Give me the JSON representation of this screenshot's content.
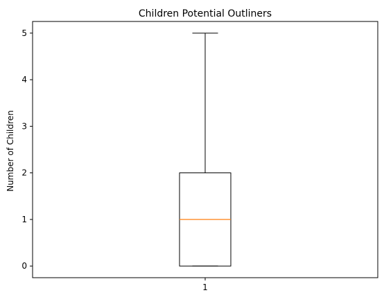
{
  "chart_data": {
    "type": "boxplot",
    "title": "Children Potential Outliners",
    "xlabel": "",
    "ylabel": "Number of Children",
    "categories": [
      "1"
    ],
    "boxes": [
      {
        "category": "1",
        "whisker_low": 0,
        "q1": 0,
        "median": 1,
        "q3": 2,
        "whisker_high": 5,
        "outliers": []
      }
    ],
    "y_ticks": [
      "0",
      "1",
      "2",
      "3",
      "4",
      "5"
    ],
    "ylim": [
      -0.25,
      5.25
    ],
    "xlim": [
      0.5,
      1.5
    ],
    "grid": false,
    "legend": "none",
    "colors": {
      "box": "#000000",
      "median": "#ff7f0e",
      "axes": "#000000"
    }
  }
}
